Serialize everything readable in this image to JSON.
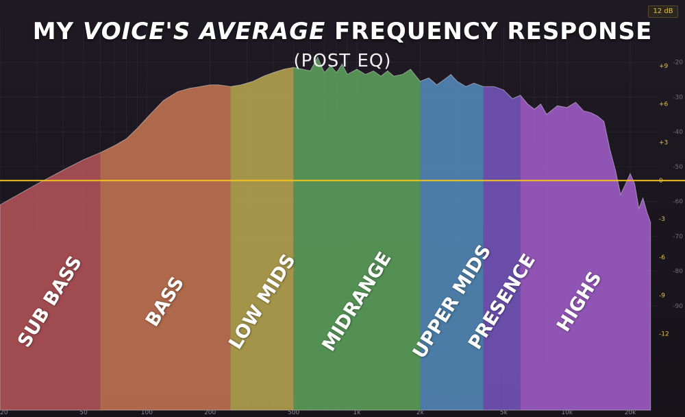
{
  "header": {
    "title_parts": [
      "MY ",
      "VOICE'S",
      " ",
      "AVERAGE",
      " FREQUENCY RESPONSE"
    ],
    "subtitle": "(POST EQ)",
    "range_badge": "12 dB"
  },
  "colors": {
    "background": "#1c1820",
    "zero_line": "#f4c21e",
    "gain_tick": "#e8c14b",
    "level_tick": "#6f6f78",
    "freq_tick": "#8d8a92",
    "spectrum_fill": "rgba(240,240,240,0.16)",
    "spectrum_stroke": "#e6e6e6"
  },
  "chart_data": {
    "type": "area",
    "title": "MY VOICE'S AVERAGE FREQUENCY RESPONSE",
    "subtitle": "(POST EQ)",
    "x_scale": "log",
    "xlim": [
      20,
      27000
    ],
    "x_ticks": [
      {
        "value": 20,
        "label": "20"
      },
      {
        "value": 50,
        "label": "50"
      },
      {
        "value": 100,
        "label": "100"
      },
      {
        "value": 200,
        "label": "200"
      },
      {
        "value": 500,
        "label": "500"
      },
      {
        "value": 1000,
        "label": "1k"
      },
      {
        "value": 2000,
        "label": "2k"
      },
      {
        "value": 5000,
        "label": "5k"
      },
      {
        "value": 10000,
        "label": "10k"
      },
      {
        "value": 20000,
        "label": "20k"
      }
    ],
    "level_ticks": [
      -20,
      -30,
      -40,
      -50,
      -60,
      -70,
      -80,
      -90
    ],
    "level_range": [
      -120,
      -10
    ],
    "gain_ticks": [
      {
        "value": 9,
        "label": "+9"
      },
      {
        "value": 6,
        "label": "+6"
      },
      {
        "value": 3,
        "label": "+3"
      },
      {
        "value": 0,
        "label": "0"
      },
      {
        "value": -3,
        "label": "-3"
      },
      {
        "value": -6,
        "label": "-6"
      },
      {
        "value": -9,
        "label": "-9"
      },
      {
        "value": -12,
        "label": "-12"
      }
    ],
    "gain_range": [
      -18,
      12
    ],
    "zero_line_gain": 0,
    "bands": [
      {
        "label": "SUB BASS",
        "from": 20,
        "to": 60,
        "color": "#9c2f35"
      },
      {
        "label": "BASS",
        "from": 60,
        "to": 250,
        "color": "#b0542f"
      },
      {
        "label": "LOW MIDS",
        "from": 250,
        "to": 500,
        "color": "#a28e2b"
      },
      {
        "label": "MIDRANGE",
        "from": 500,
        "to": 2000,
        "color": "#3a8a3a"
      },
      {
        "label": "UPPER MIDS",
        "from": 2000,
        "to": 4000,
        "color": "#2f6fa6"
      },
      {
        "label": "PRESENCE",
        "from": 4000,
        "to": 6000,
        "color": "#5531a8"
      },
      {
        "label": "HIGHS",
        "from": 6000,
        "to": 27000,
        "color": "#8a3bb8"
      }
    ],
    "series": [
      {
        "x": [
          20,
          30,
          40,
          50,
          60,
          70,
          80,
          90,
          100,
          120,
          140,
          160,
          180,
          200,
          220,
          250,
          280,
          320,
          360,
          400,
          450,
          500,
          550,
          600,
          650,
          700,
          750,
          800,
          850,
          900,
          1000,
          1100,
          1200,
          1300,
          1400,
          1500,
          1650,
          1800,
          2000,
          2200,
          2400,
          2600,
          2800,
          3000,
          3300,
          3600,
          4000,
          4500,
          5000,
          5500,
          6000,
          6500,
          7000,
          7500,
          8000,
          9000,
          10000,
          11000,
          12000,
          13000,
          14000,
          15000,
          16000,
          17000,
          18000,
          19000,
          20000,
          21000,
          22000,
          23000,
          24000,
          25000
        ],
        "y": [
          -61,
          -55,
          -51,
          -48,
          -46,
          -44,
          -42,
          -39,
          -36,
          -31,
          -28.5,
          -27.5,
          -27,
          -26.5,
          -26.5,
          -27,
          -26.5,
          -25.5,
          -24,
          -23,
          -22,
          -21.5,
          -22,
          -22.5,
          -18.5,
          -23,
          -21,
          -23,
          -20.5,
          -23.5,
          -22,
          -23.5,
          -22.5,
          -24,
          -22.5,
          -24,
          -23.5,
          -22,
          -25.5,
          -24.5,
          -26.5,
          -25,
          -23.5,
          -25.5,
          -27,
          -26,
          -27,
          -27,
          -28,
          -30.5,
          -29.5,
          -32,
          -33.5,
          -32,
          -35,
          -32.5,
          -33,
          -31.5,
          -34,
          -34.5,
          -35.5,
          -37,
          -45,
          -51,
          -58,
          -55,
          -52,
          -55,
          -62,
          -59,
          -63,
          -66
        ]
      }
    ]
  }
}
